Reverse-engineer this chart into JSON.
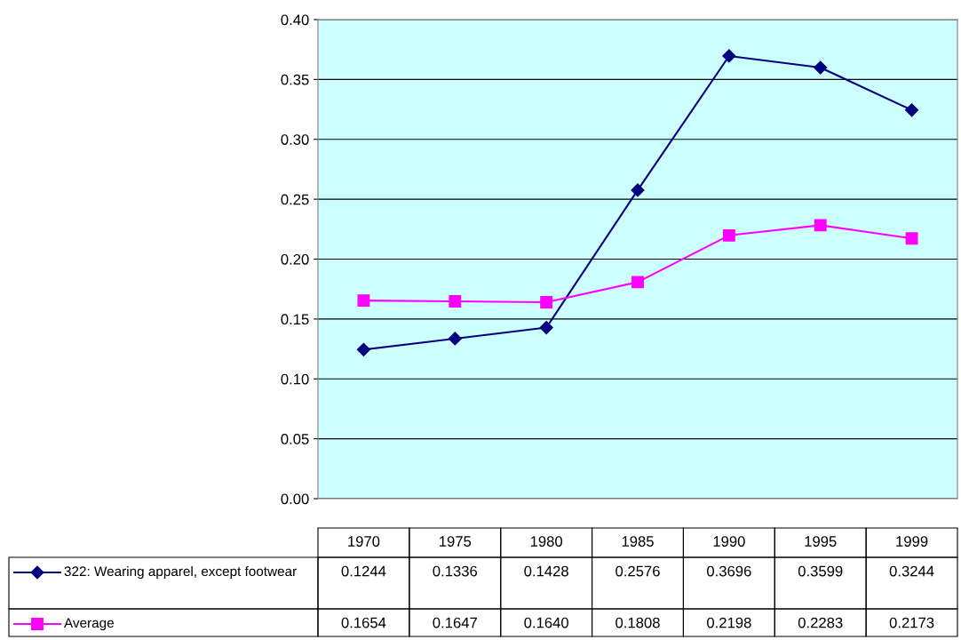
{
  "chart_data": {
    "type": "line",
    "categories": [
      "1970",
      "1975",
      "1980",
      "1985",
      "1990",
      "1995",
      "1999"
    ],
    "series": [
      {
        "name": "322: Wearing apparel, except footwear",
        "color": "#000080",
        "marker": "diamond",
        "values": [
          0.1244,
          0.1336,
          0.1428,
          0.2576,
          0.3696,
          0.3599,
          0.3244
        ],
        "value_labels": [
          "0.1244",
          "0.1336",
          "0.1428",
          "0.2576",
          "0.3696",
          "0.3599",
          "0.3244"
        ]
      },
      {
        "name": "Average",
        "color": "#ff00ff",
        "marker": "square",
        "values": [
          0.1654,
          0.1647,
          0.164,
          0.1808,
          0.2198,
          0.2283,
          0.2173
        ],
        "value_labels": [
          "0.1654",
          "0.1647",
          "0.1640",
          "0.1808",
          "0.2198",
          "0.2283",
          "0.2173"
        ]
      }
    ],
    "ylim": [
      0,
      0.4
    ],
    "yticks": [
      {
        "value": 0,
        "label": "0.00"
      },
      {
        "value": 0.05,
        "label": "0.05"
      },
      {
        "value": 0.1,
        "label": "0.10"
      },
      {
        "value": 0.15,
        "label": "0.15"
      },
      {
        "value": 0.2,
        "label": "0.20"
      },
      {
        "value": 0.25,
        "label": "0.25"
      },
      {
        "value": 0.3,
        "label": "0.30"
      },
      {
        "value": 0.35,
        "label": "0.35"
      },
      {
        "value": 0.4,
        "label": "0.40"
      }
    ],
    "grid": "y",
    "legend": "bottom",
    "line_style": "solid"
  }
}
